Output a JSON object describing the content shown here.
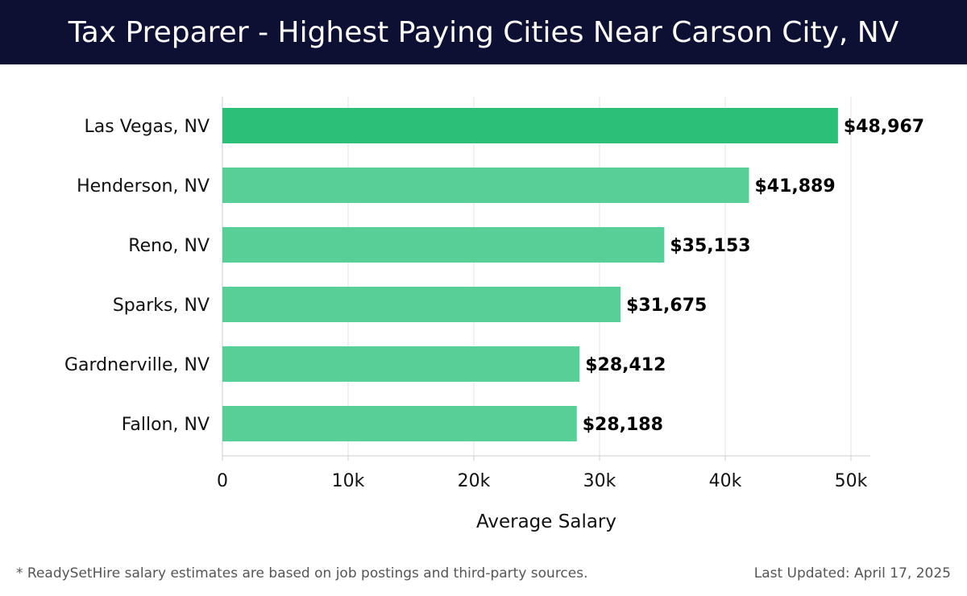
{
  "header": {
    "title": "Tax Preparer - Highest Paying Cities Near Carson City, NV"
  },
  "chart_data": {
    "type": "bar",
    "orientation": "horizontal",
    "categories": [
      "Las Vegas, NV",
      "Henderson, NV",
      "Reno, NV",
      "Sparks, NV",
      "Gardnerville, NV",
      "Fallon, NV"
    ],
    "values": [
      48967,
      41889,
      35153,
      31675,
      28412,
      28188
    ],
    "value_labels": [
      "$48,967",
      "$41,889",
      "$35,153",
      "$31,675",
      "$28,412",
      "$28,188"
    ],
    "xlabel": "Average Salary",
    "ylabel": "",
    "xlim": [
      0,
      50000
    ],
    "xticks": [
      0,
      10000,
      20000,
      30000,
      40000,
      50000
    ],
    "xtick_labels": [
      "0",
      "10k",
      "20k",
      "30k",
      "40k",
      "50k"
    ],
    "grid": "vertical",
    "bar_color_top": "#2bbf77",
    "bar_color_rest": "#57cf96"
  },
  "footer": {
    "note": "* ReadySetHire salary estimates are based on job postings and third-party sources.",
    "updated": "Last Updated: April 17, 2025"
  }
}
